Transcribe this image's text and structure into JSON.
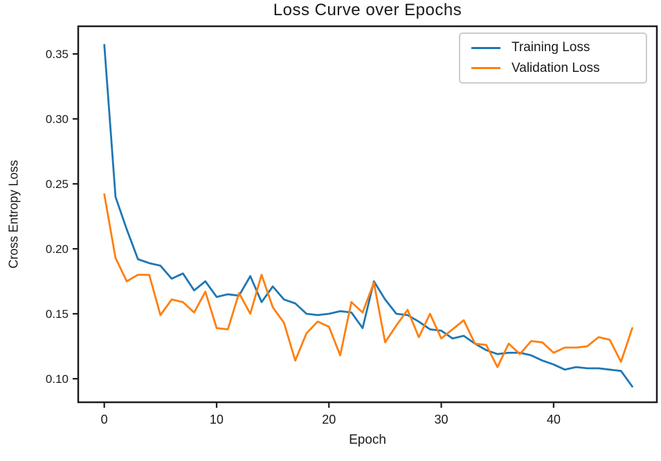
{
  "figure": {
    "background": "#ffffff",
    "frame_color": "#1c1c1c",
    "tick_color": "#1c1c1c",
    "text_color": "#1a1a1a"
  },
  "chart_data": {
    "type": "line",
    "title": "Loss Curve over Epochs",
    "xlabel": "Epoch",
    "ylabel": "Cross Entropy Loss",
    "grid": false,
    "legend_position": "upper right",
    "xlim": [
      -2.32,
      49.19
    ],
    "ylim": [
      0.0819,
      0.3713
    ],
    "xticks": [
      0,
      10,
      20,
      30,
      40
    ],
    "xtick_labels": [
      "0",
      "10",
      "20",
      "30",
      "40"
    ],
    "yticks": [
      0.1,
      0.15,
      0.2,
      0.25,
      0.3,
      0.35
    ],
    "ytick_labels": [
      "0.10",
      "0.15",
      "0.20",
      "0.25",
      "0.30",
      "0.35"
    ],
    "x": [
      0,
      1,
      2,
      3,
      4,
      5,
      6,
      7,
      8,
      9,
      10,
      11,
      12,
      13,
      14,
      15,
      16,
      17,
      18,
      19,
      20,
      21,
      22,
      23,
      24,
      25,
      26,
      27,
      28,
      29,
      30,
      31,
      32,
      33,
      34,
      35,
      36,
      37,
      38,
      39,
      40,
      41,
      42,
      43,
      44,
      45,
      46,
      47
    ],
    "series": [
      {
        "name": "Training Loss",
        "color": "#1f77b4",
        "values": [
          0.357,
          0.24,
          0.215,
          0.192,
          0.189,
          0.187,
          0.177,
          0.181,
          0.168,
          0.175,
          0.163,
          0.165,
          0.164,
          0.179,
          0.159,
          0.171,
          0.161,
          0.158,
          0.15,
          0.149,
          0.15,
          0.152,
          0.151,
          0.139,
          0.175,
          0.161,
          0.15,
          0.149,
          0.144,
          0.138,
          0.137,
          0.131,
          0.133,
          0.127,
          0.122,
          0.119,
          0.12,
          0.12,
          0.118,
          0.114,
          0.111,
          0.107,
          0.109,
          0.108,
          0.108,
          0.107,
          0.106,
          0.094
        ]
      },
      {
        "name": "Validation Loss",
        "color": "#ff7f0e",
        "values": [
          0.242,
          0.193,
          0.175,
          0.18,
          0.18,
          0.149,
          0.161,
          0.159,
          0.151,
          0.167,
          0.139,
          0.138,
          0.166,
          0.15,
          0.18,
          0.155,
          0.143,
          0.114,
          0.135,
          0.144,
          0.14,
          0.118,
          0.159,
          0.151,
          0.174,
          0.128,
          0.141,
          0.153,
          0.132,
          0.15,
          0.131,
          0.138,
          0.145,
          0.127,
          0.126,
          0.109,
          0.127,
          0.119,
          0.129,
          0.128,
          0.12,
          0.124,
          0.124,
          0.125,
          0.132,
          0.13,
          0.113,
          0.139
        ]
      }
    ]
  }
}
